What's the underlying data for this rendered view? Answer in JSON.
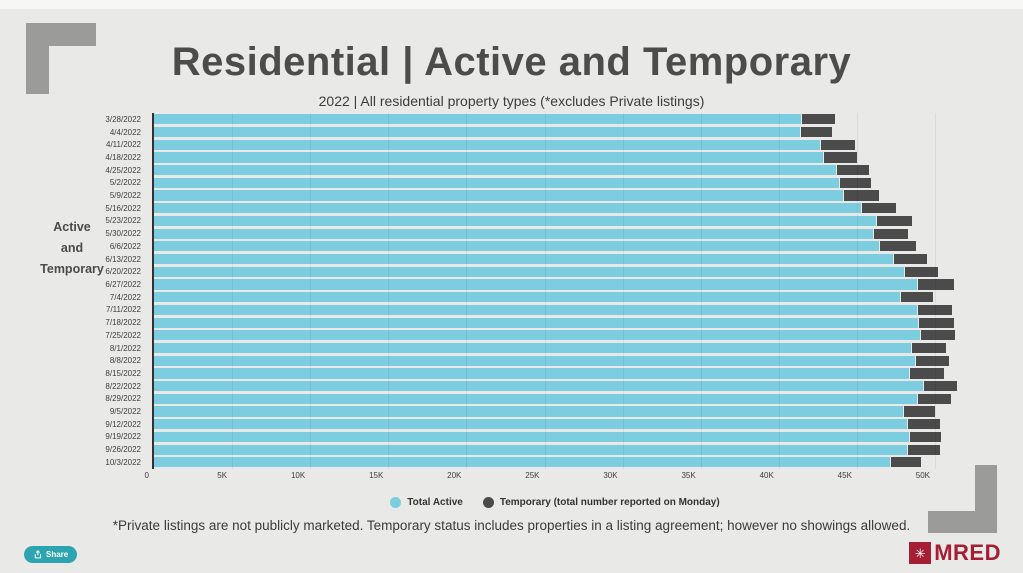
{
  "page": {
    "title": "Residential | Active and Temporary",
    "subtitle": "2022 | All residential property types (*excludes Private listings)",
    "y_axis_title_lines": [
      "Active",
      "and",
      "Temporary"
    ],
    "footnote": "*Private listings are not publicly marketed. Temporary status includes properties in a listing agreement; however no showings allowed.",
    "share_label": "Share",
    "brand": "MRED",
    "brand_mark_glyph": "✳"
  },
  "colors": {
    "background": "#e9e9e7",
    "active_blue": "#7ccde0",
    "temporary_dark": "#4b4b4b",
    "corner_gray": "#9b9b99",
    "share_teal": "#2da5b0",
    "brand_red": "#a41f36"
  },
  "chart_data": {
    "type": "bar",
    "orientation": "horizontal",
    "stacked": true,
    "grid": true,
    "legend_position": "bottom",
    "categories": [
      "3/28/2022",
      "4/4/2022",
      "4/11/2022",
      "4/18/2022",
      "4/25/2022",
      "5/2/2022",
      "5/9/2022",
      "5/16/2022",
      "5/23/2022",
      "5/30/2022",
      "6/6/2022",
      "6/13/2022",
      "6/20/2022",
      "6/27/2022",
      "7/4/2022",
      "7/11/2022",
      "7/18/2022",
      "7/25/2022",
      "8/1/2022",
      "8/8/2022",
      "8/15/2022",
      "8/22/2022",
      "8/29/2022",
      "9/5/2022",
      "9/12/2022",
      "9/19/2022",
      "9/26/2022",
      "10/3/2022"
    ],
    "series": [
      {
        "name": "Total Active",
        "color": "#7ccde0",
        "values": [
          41500,
          41400,
          42700,
          42900,
          43700,
          43900,
          44200,
          45300,
          46300,
          46100,
          46500,
          47400,
          48100,
          48900,
          47800,
          48900,
          49000,
          49100,
          48500,
          48800,
          48400,
          49300,
          48900,
          48000,
          48300,
          48400,
          48300,
          47200
        ]
      },
      {
        "name": "Temporary (total number reported on Monday)",
        "color": "#4b4b4b",
        "values": [
          2100,
          2000,
          2200,
          2100,
          2100,
          2000,
          2200,
          2200,
          2200,
          2200,
          2300,
          2100,
          2100,
          2300,
          2100,
          2200,
          2200,
          2200,
          2200,
          2100,
          2200,
          2100,
          2100,
          2000,
          2000,
          2000,
          2000,
          1900
        ]
      }
    ],
    "xlim": [
      0,
      51600
    ],
    "x_ticks": [
      "0",
      "5K",
      "10K",
      "15K",
      "20K",
      "25K",
      "30K",
      "35K",
      "40K",
      "45K",
      "50K"
    ],
    "x_tick_values": [
      0,
      5000,
      10000,
      15000,
      20000,
      25000,
      30000,
      35000,
      40000,
      45000,
      50000
    ]
  }
}
